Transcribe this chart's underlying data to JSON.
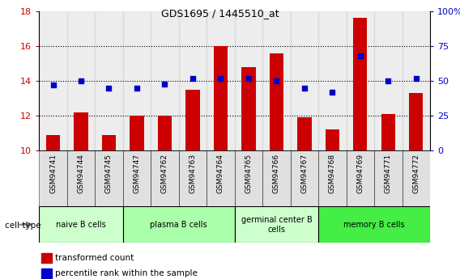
{
  "title": "GDS1695 / 1445510_at",
  "samples": [
    "GSM94741",
    "GSM94744",
    "GSM94745",
    "GSM94747",
    "GSM94762",
    "GSM94763",
    "GSM94764",
    "GSM94765",
    "GSM94766",
    "GSM94767",
    "GSM94768",
    "GSM94769",
    "GSM94771",
    "GSM94772"
  ],
  "transformed_count": [
    10.9,
    12.2,
    10.9,
    12.0,
    12.0,
    13.5,
    16.0,
    14.8,
    15.6,
    11.9,
    11.2,
    17.6,
    12.1,
    13.3
  ],
  "percentile_rank": [
    47,
    50,
    45,
    45,
    48,
    52,
    52,
    52,
    50,
    45,
    42,
    68,
    50,
    52
  ],
  "ylim_left": [
    10,
    18
  ],
  "ylim_right": [
    0,
    100
  ],
  "yticks_left": [
    10,
    12,
    14,
    16,
    18
  ],
  "yticks_right": [
    0,
    25,
    50,
    75,
    100
  ],
  "bar_color": "#cc0000",
  "dot_color": "#0000cc",
  "cell_groups": [
    {
      "label": "naive B cells",
      "start": 0,
      "end": 3,
      "color": "#ccffcc"
    },
    {
      "label": "plasma B cells",
      "start": 3,
      "end": 7,
      "color": "#aaffaa"
    },
    {
      "label": "germinal center B\ncells",
      "start": 7,
      "end": 10,
      "color": "#ccffcc"
    },
    {
      "label": "memory B cells",
      "start": 10,
      "end": 14,
      "color": "#44ee44"
    }
  ],
  "cell_type_label": "cell type",
  "legend_items": [
    {
      "label": "transformed count",
      "color": "#cc0000"
    },
    {
      "label": "percentile rank within the sample",
      "color": "#0000cc"
    }
  ],
  "bar_width": 0.5,
  "tick_label_color_left": "#cc0000",
  "tick_label_color_right": "#0000cc",
  "sample_bg_color": "#cccccc",
  "grid_yticks": [
    12,
    14,
    16
  ]
}
